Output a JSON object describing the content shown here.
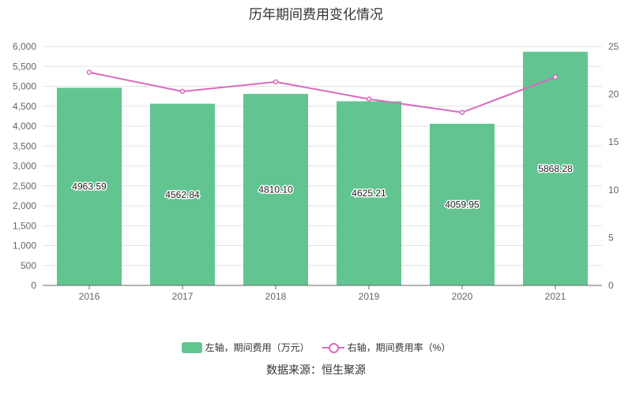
{
  "chart_data": {
    "type": "bar",
    "title": "历年期间费用变化情况",
    "categories": [
      "2016",
      "2017",
      "2018",
      "2019",
      "2020",
      "2021"
    ],
    "series": [
      {
        "name": "左轴，期间费用（万元）",
        "type": "bar",
        "axis": "left",
        "color": "#62c591",
        "values": [
          4963.59,
          4562.84,
          4810.1,
          4625.21,
          4059.95,
          5868.28
        ],
        "labels": [
          "4963.59",
          "4562.84",
          "4810.10",
          "4625.21",
          "4059.95",
          "5868.28"
        ]
      },
      {
        "name": "右轴，期间费用率（%）",
        "type": "line",
        "axis": "right",
        "color": "#d96bbf",
        "values": [
          22.3,
          20.3,
          21.3,
          19.5,
          18.1,
          21.8
        ]
      }
    ],
    "yleft": {
      "min": 0,
      "max": 6000,
      "step": 500,
      "ticks": [
        "0",
        "500",
        "1,000",
        "1,500",
        "2,000",
        "2,500",
        "3,000",
        "3,500",
        "4,000",
        "4,500",
        "5,000",
        "5,500",
        "6,000"
      ]
    },
    "yright": {
      "min": 0,
      "max": 25,
      "step": 5,
      "ticks": [
        "0",
        "5",
        "10",
        "15",
        "20",
        "25"
      ]
    },
    "grid": true,
    "legend_position": "bottom"
  },
  "legend": {
    "bar_label": "左轴，期间费用（万元）",
    "line_label": "右轴，期间费用率（%）"
  },
  "source": "数据来源：恒生聚源"
}
